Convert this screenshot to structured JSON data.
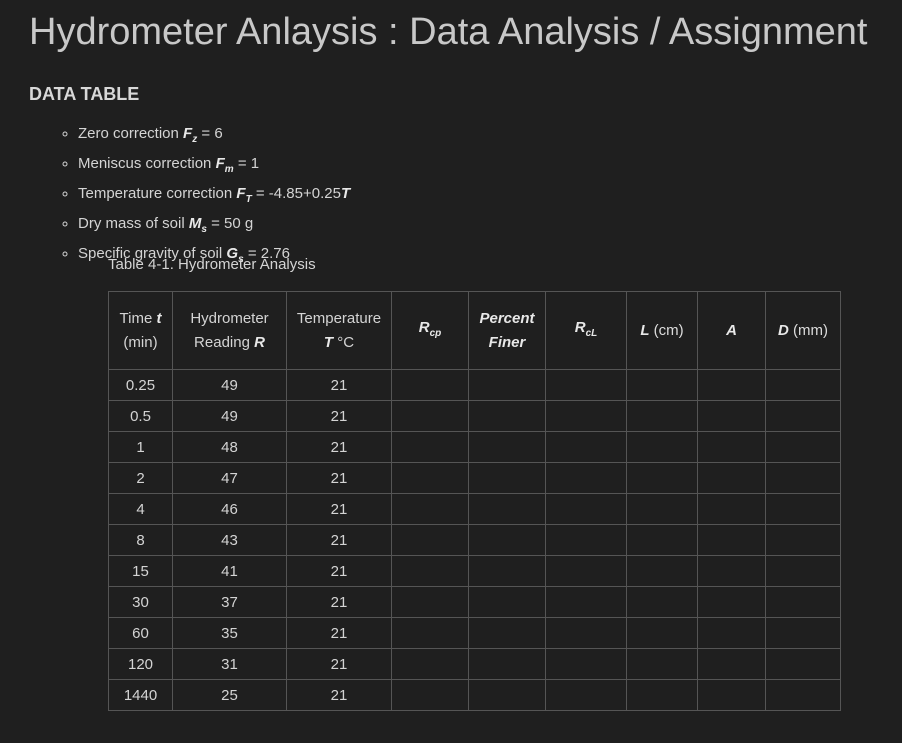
{
  "header": {
    "title": "Hydrometer Anlaysis : Data Analysis / Assignment"
  },
  "section": {
    "heading": "DATA TABLE"
  },
  "list": [
    {
      "text": "Zero correction",
      "symbol": "F",
      "sub": "z",
      "value": "= 6"
    },
    {
      "text": "Meniscus correction",
      "symbol": "F",
      "sub": "m",
      "value": "= 1"
    },
    {
      "text": "Temperature correction",
      "symbol": "F",
      "sub": "T",
      "value": "= -4.85+0.25",
      "suffix": "T"
    },
    {
      "text": "Dry mass of soil",
      "symbol": "M",
      "sub": "s",
      "value": "= 50 g"
    },
    {
      "text": "Specific gravity of soil",
      "symbol": "G",
      "sub": "s",
      "value": "= 2.76"
    }
  ],
  "table": {
    "caption": "Table 4-1. Hydrometer Analysis",
    "header": [
      {
        "line1": "Time",
        "var": "t",
        "line2": "(min)"
      },
      {
        "line1": "Hydrometer",
        "line2": "Reading",
        "var": "R"
      },
      {
        "line1": "Temperature",
        "var": "T",
        "unit": "°C"
      },
      {
        "var": "R",
        "sub": "cp"
      },
      {
        "line1": "Percent",
        "line2": "Finer"
      },
      {
        "var": "R",
        "sub": "cL"
      },
      {
        "var": "L",
        "unit": "(cm)"
      },
      {
        "var": "A"
      },
      {
        "var": "D",
        "unit": "(mm)"
      }
    ],
    "rows": [
      [
        0.25,
        49,
        21
      ],
      [
        0.5,
        49,
        21
      ],
      [
        1,
        48,
        21
      ],
      [
        2,
        47,
        21
      ],
      [
        4,
        46,
        21
      ],
      [
        8,
        43,
        21
      ],
      [
        15,
        41,
        21
      ],
      [
        30,
        37,
        21
      ],
      [
        60,
        35,
        21
      ],
      [
        120,
        31,
        21
      ],
      [
        1440,
        25,
        21
      ]
    ]
  }
}
